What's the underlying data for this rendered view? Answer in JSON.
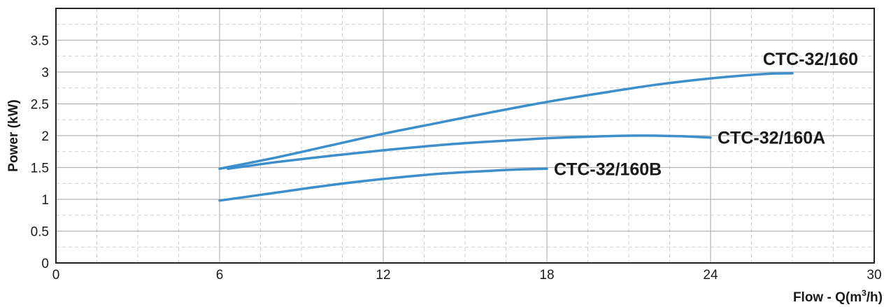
{
  "chart_data": {
    "type": "line",
    "title": "",
    "xlabel": "Flow - Q(m",
    "xlabel_sup": "3",
    "xlabel_tail": "/h)",
    "ylabel": "Power (kW)",
    "xlim": [
      0,
      30
    ],
    "ylim": [
      0,
      4
    ],
    "x_ticks": [
      0,
      6,
      12,
      18,
      24,
      30
    ],
    "x_tick_labels": [
      "0",
      "6",
      "12",
      "18",
      "24",
      "30"
    ],
    "x_minor_step": 1.5,
    "y_ticks": [
      0,
      0.5,
      1,
      1.5,
      2,
      2.5,
      3,
      3.5
    ],
    "y_tick_labels": [
      "0",
      "0.5",
      "1",
      "1.5",
      "2",
      "2.5",
      "3",
      "3.5"
    ],
    "y_minor_step": 0.25,
    "grid": true,
    "line_color": "#3d8fcc",
    "series": [
      {
        "name": "CTC-32/160",
        "x": [
          6,
          8,
          10,
          12,
          14,
          16,
          18,
          20,
          22,
          24,
          26,
          27
        ],
        "y": [
          1.48,
          1.65,
          1.84,
          2.03,
          2.2,
          2.37,
          2.53,
          2.67,
          2.8,
          2.9,
          2.97,
          2.98
        ]
      },
      {
        "name": "CTC-32/160A",
        "x": [
          6.3,
          8,
          10,
          12,
          14,
          16,
          18,
          20,
          21,
          22,
          23,
          24
        ],
        "y": [
          1.48,
          1.58,
          1.68,
          1.77,
          1.85,
          1.91,
          1.96,
          1.99,
          2.0,
          2.0,
          1.99,
          1.97
        ]
      },
      {
        "name": "CTC-32/160B",
        "x": [
          6,
          8,
          10,
          12,
          14,
          16,
          17,
          18
        ],
        "y": [
          0.98,
          1.1,
          1.22,
          1.32,
          1.4,
          1.45,
          1.47,
          1.48
        ]
      }
    ]
  }
}
